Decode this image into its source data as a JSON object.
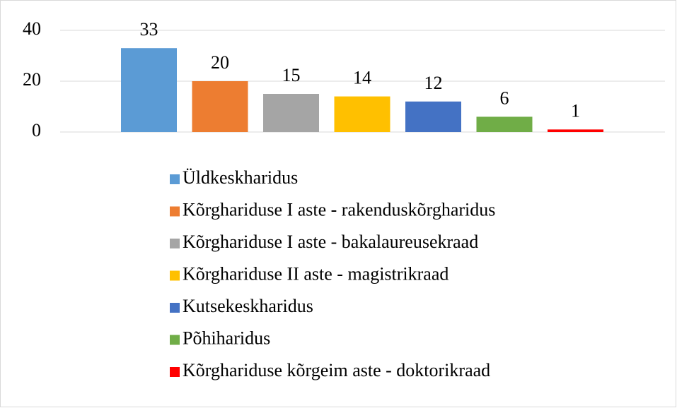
{
  "chart_data": {
    "type": "bar",
    "categories": [
      null
    ],
    "series": [
      {
        "name": "Üldkeskharidus",
        "color": "#5b9bd5",
        "values": [
          33
        ]
      },
      {
        "name": "Kõrghariduse I aste - rakenduskõrgharidus",
        "color": "#ed7d31",
        "values": [
          20
        ]
      },
      {
        "name": "Kõrghariduse I aste - bakalaureusekraad",
        "color": "#a5a5a5",
        "values": [
          15
        ]
      },
      {
        "name": "Kõrghariduse II aste - magistrikraad",
        "color": "#ffc000",
        "values": [
          14
        ]
      },
      {
        "name": "Kutsekeskharidus",
        "color": "#4472c4",
        "values": [
          12
        ]
      },
      {
        "name": "Põhiharidus",
        "color": "#70ad47",
        "values": [
          6
        ]
      },
      {
        "name": "Kõrghariduse kõrgeim aste - doktorikraad",
        "color": "#ff0000",
        "values": [
          1
        ]
      }
    ],
    "ylim": [
      0,
      40
    ],
    "yticks": [
      0,
      20,
      40
    ],
    "grid": true,
    "legend": "bottom"
  }
}
